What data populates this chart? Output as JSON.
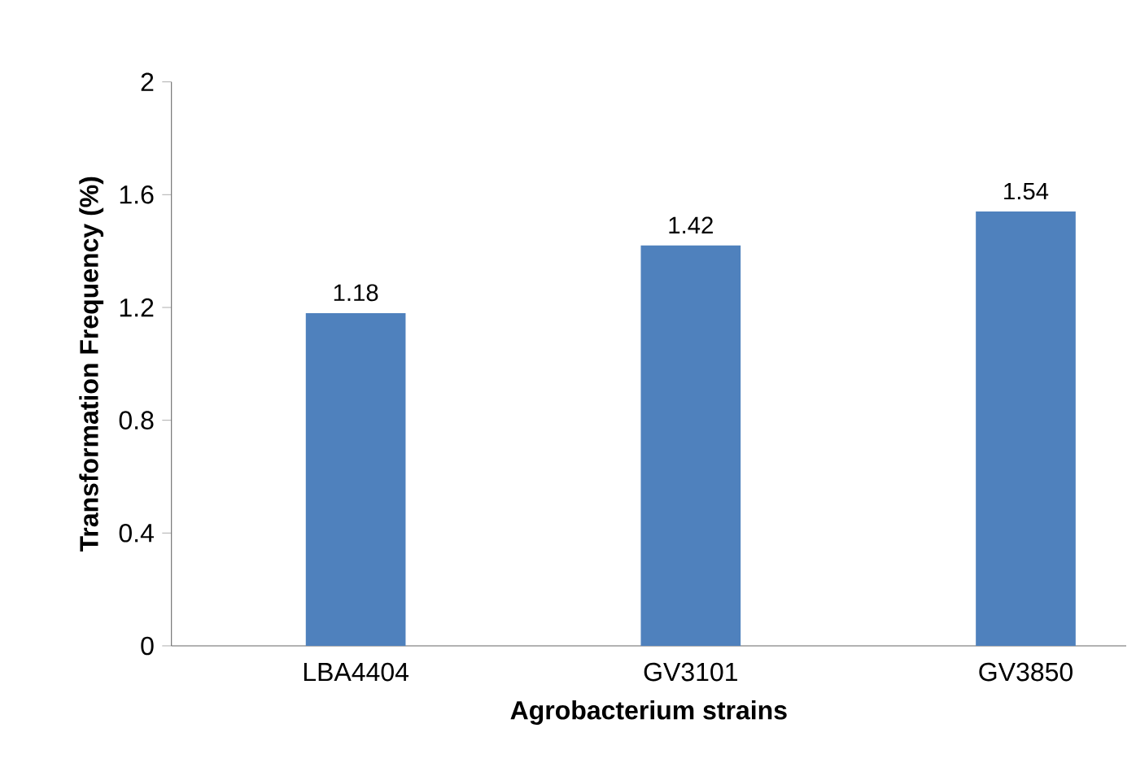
{
  "chart_data": {
    "type": "bar",
    "xlabel": "Agrobacterium strains",
    "ylabel": "Transformation Frequency (%)",
    "categories": [
      "LBA4404",
      "GV3101",
      "GV3850"
    ],
    "values": [
      1.18,
      1.42,
      1.54
    ],
    "color": "#4f81bd",
    "ylim": [
      0,
      2
    ],
    "yticks": [
      0,
      0.4,
      0.8,
      1.2,
      1.6,
      2
    ],
    "data_labels": true
  }
}
